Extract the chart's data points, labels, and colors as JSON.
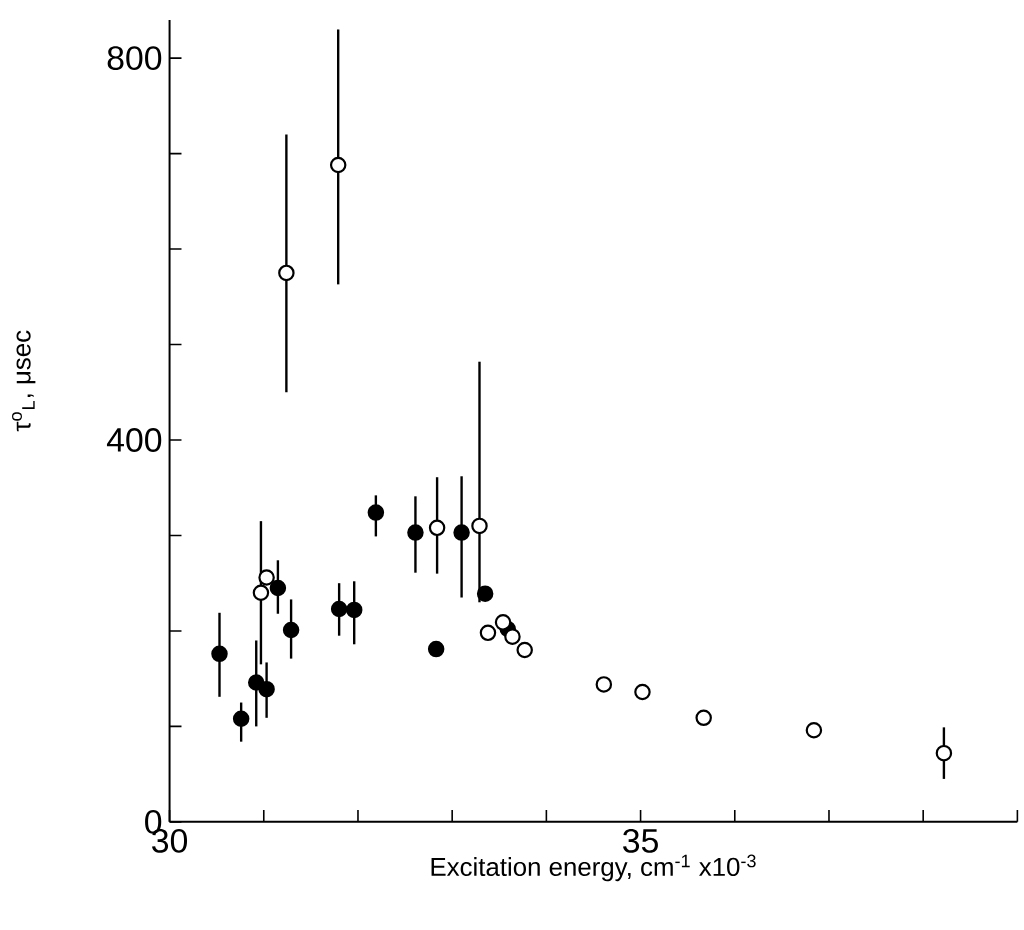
{
  "chart_data": {
    "type": "scatter",
    "xlabel": "Excitation energy, cm$^{-1}$ x10$^{-3}$",
    "ylabel": "τ$^{o}$$_{L}$, μsec",
    "xlim": [
      30,
      39
    ],
    "ylim": [
      0,
      840
    ],
    "xticks": [
      30,
      {
        "value": 31,
        "label": null
      },
      {
        "value": 32,
        "label": null
      },
      {
        "value": 33,
        "label": null
      },
      {
        "value": 34,
        "label": null
      },
      35,
      {
        "value": 36,
        "label": null
      },
      {
        "value": 37,
        "label": null
      },
      {
        "value": 38,
        "label": null
      },
      {
        "value": 39,
        "label": null
      }
    ],
    "yticks": [
      0,
      {
        "value": 100,
        "label": null
      },
      {
        "value": 200,
        "label": null
      },
      {
        "value": 300,
        "label": null
      },
      400,
      {
        "value": 500,
        "label": null
      },
      {
        "value": 600,
        "label": null
      },
      {
        "value": 700,
        "label": null
      },
      800
    ],
    "series": [
      {
        "color": "#000000",
        "x": [
          30.53,
          30.76,
          30.92,
          31.03,
          31.15,
          31.29,
          31.8,
          31.96,
          32.19,
          32.61,
          32.83,
          33.1,
          33.35,
          33.59
        ],
        "values": [
          176,
          108,
          146,
          139,
          245,
          201,
          223,
          222,
          324,
          303,
          181,
          303,
          239,
          202
        ],
        "errors": [
          [
            131,
            219
          ],
          [
            84,
            125
          ],
          [
            100,
            190
          ],
          [
            109,
            167
          ],
          [
            218,
            274
          ],
          [
            171,
            233
          ],
          [
            195,
            250
          ],
          [
            186,
            252
          ],
          [
            299,
            342
          ],
          [
            261,
            341
          ],
          null,
          [
            235,
            362
          ],
          null,
          null
        ]
      },
      {
        "color": "#ffffff",
        "x": [
          30.97,
          31.03,
          31.24,
          31.79,
          32.84,
          33.29,
          33.38,
          33.54,
          33.64,
          33.77,
          34.61,
          35.02,
          35.67,
          36.84,
          38.22
        ],
        "values": [
          240,
          256,
          575,
          688,
          308,
          310,
          198,
          209,
          194,
          180,
          144,
          136,
          109,
          96,
          72
        ],
        "errors": [
          [
            165,
            315
          ],
          null,
          [
            450,
            720
          ],
          [
            563,
            830
          ],
          [
            260,
            361
          ],
          [
            230,
            482
          ],
          null,
          null,
          null,
          null,
          null,
          null,
          null,
          null,
          [
            45,
            99
          ]
        ]
      }
    ]
  }
}
